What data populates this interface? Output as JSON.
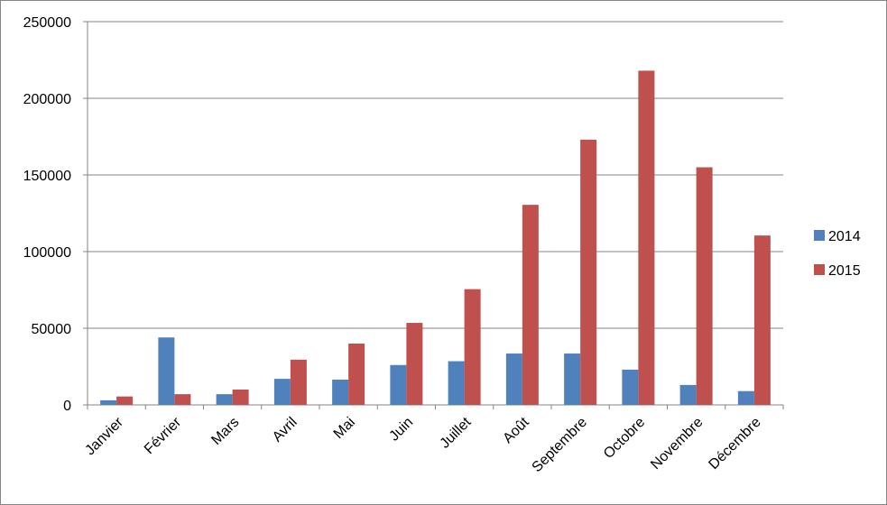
{
  "chart_data": {
    "type": "bar",
    "categories": [
      "Janvier",
      "Février",
      "Mars",
      "Avril",
      "Mai",
      "Juin",
      "Juillet",
      "Août",
      "Septembre",
      "Octobre",
      "Novembre",
      "Décembre"
    ],
    "series": [
      {
        "name": "2014",
        "color": "#4F81BD",
        "values": [
          3000,
          44000,
          7000,
          17000,
          16500,
          26000,
          28500,
          33500,
          33500,
          23000,
          13000,
          9000
        ]
      },
      {
        "name": "2015",
        "color": "#C0504D",
        "values": [
          5500,
          7000,
          10000,
          29500,
          40000,
          53500,
          75500,
          130500,
          173000,
          218000,
          155000,
          110500
        ]
      }
    ],
    "title": "",
    "xlabel": "",
    "ylabel": "",
    "ylim": [
      0,
      250000
    ],
    "yticks": [
      "0",
      "50000",
      "100000",
      "150000",
      "200000",
      "250000"
    ],
    "grid": true,
    "legend_position": "right"
  }
}
